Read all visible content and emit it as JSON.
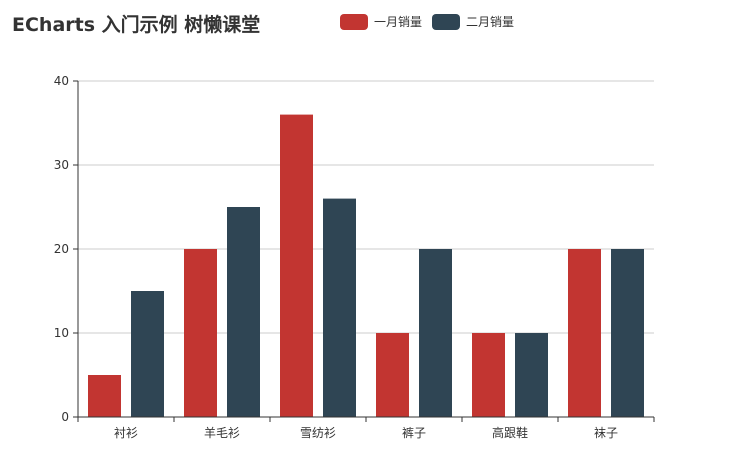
{
  "chart_data": {
    "type": "bar",
    "title": "ECharts 入门示例 树懒课堂",
    "categories": [
      "衬衫",
      "羊毛衫",
      "雪纺衫",
      "裤子",
      "高跟鞋",
      "袜子"
    ],
    "series": [
      {
        "name": "一月销量",
        "values": [
          5,
          20,
          36,
          10,
          10,
          20
        ]
      },
      {
        "name": "二月销量",
        "values": [
          15,
          25,
          26,
          20,
          10,
          20
        ]
      }
    ],
    "xlabel": "",
    "ylabel": "",
    "ylim": [
      0,
      40
    ],
    "yticks": [
      "0",
      "10",
      "20",
      "30",
      "40"
    ],
    "grid": true,
    "legend_position": "top-center"
  },
  "colors": {
    "series": [
      "#c23531",
      "#2f4554"
    ],
    "grid": "#cccccc",
    "axis": "#333333",
    "text": "#333333"
  }
}
